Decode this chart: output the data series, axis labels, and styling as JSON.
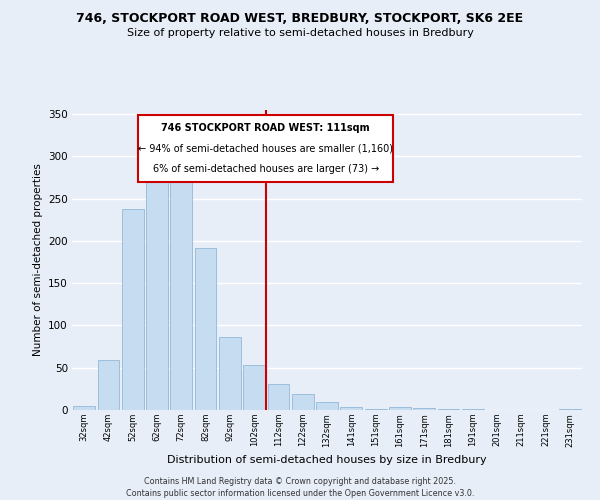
{
  "title1": "746, STOCKPORT ROAD WEST, BREDBURY, STOCKPORT, SK6 2EE",
  "title2": "Size of property relative to semi-detached houses in Bredbury",
  "xlabel": "Distribution of semi-detached houses by size in Bredbury",
  "ylabel": "Number of semi-detached properties",
  "bar_labels": [
    "32sqm",
    "42sqm",
    "52sqm",
    "62sqm",
    "72sqm",
    "82sqm",
    "92sqm",
    "102sqm",
    "112sqm",
    "122sqm",
    "132sqm",
    "141sqm",
    "151sqm",
    "161sqm",
    "171sqm",
    "181sqm",
    "191sqm",
    "201sqm",
    "211sqm",
    "221sqm",
    "231sqm"
  ],
  "bar_values": [
    5,
    59,
    238,
    270,
    272,
    192,
    86,
    53,
    31,
    19,
    9,
    4,
    1,
    4,
    2,
    1,
    1,
    0,
    0,
    0,
    1
  ],
  "bar_color": "#c6dcf0",
  "bar_edge_color": "#93b8d8",
  "bg_color": "#e8eef8",
  "grid_color": "#ffffff",
  "vline_x_idx": 8,
  "vline_color": "#cc0000",
  "annotation_title": "746 STOCKPORT ROAD WEST: 111sqm",
  "annotation_line1": "← 94% of semi-detached houses are smaller (1,160)",
  "annotation_line2": "6% of semi-detached houses are larger (73) →",
  "annotation_box_edgecolor": "#cc0000",
  "footer1": "Contains HM Land Registry data © Crown copyright and database right 2025.",
  "footer2": "Contains public sector information licensed under the Open Government Licence v3.0.",
  "ylim": [
    0,
    355
  ],
  "yticks": [
    0,
    50,
    100,
    150,
    200,
    250,
    300,
    350
  ]
}
